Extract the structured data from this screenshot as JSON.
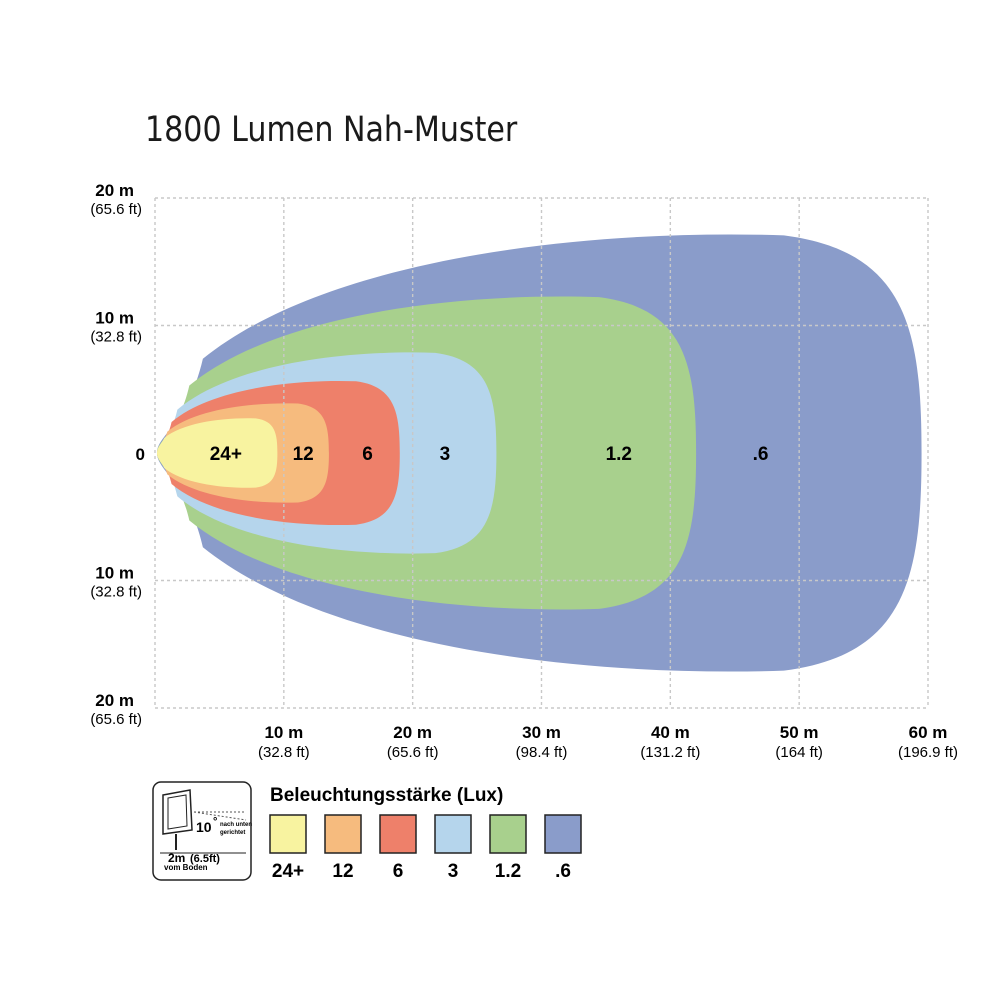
{
  "chart_data": {
    "type": "area",
    "title": "1800 Lumen Nah-Muster",
    "x_ticks": [
      {
        "m": "10 m",
        "ft": "(32.8 ft)",
        "value": 10
      },
      {
        "m": "20 m",
        "ft": "(65.6 ft)",
        "value": 20
      },
      {
        "m": "30 m",
        "ft": "(98.4 ft)",
        "value": 30
      },
      {
        "m": "40 m",
        "ft": "(131.2 ft)",
        "value": 40
      },
      {
        "m": "50 m",
        "ft": "(164 ft)",
        "value": 50
      },
      {
        "m": "60 m",
        "ft": "(196.9 ft)",
        "value": 60
      }
    ],
    "y_ticks": [
      {
        "m": "20 m",
        "ft": "(65.6 ft)",
        "value": 20
      },
      {
        "m": "10 m",
        "ft": "(32.8 ft)",
        "value": 10
      },
      {
        "m": "0",
        "ft": "",
        "value": 0
      },
      {
        "m": "10 m",
        "ft": "(32.8 ft)",
        "value": -10
      },
      {
        "m": "20 m",
        "ft": "(65.6 ft)",
        "value": -20
      }
    ],
    "xlim": [
      0,
      60
    ],
    "ylim": [
      -20,
      20
    ],
    "grid": true,
    "series": [
      {
        "name": ".6",
        "color": "#8a9cca",
        "reach_m": 59.5,
        "half_width_m": 17.6
      },
      {
        "name": "1.2",
        "color": "#a8d08d",
        "reach_m": 42,
        "half_width_m": 12.6
      },
      {
        "name": "3",
        "color": "#b5d5ec",
        "reach_m": 26.5,
        "half_width_m": 8.1
      },
      {
        "name": "6",
        "color": "#ee806a",
        "reach_m": 19,
        "half_width_m": 5.8
      },
      {
        "name": "12",
        "color": "#f6bb7e",
        "reach_m": 13.5,
        "half_width_m": 4
      },
      {
        "name": "24+",
        "color": "#f8f3a0",
        "reach_m": 9.5,
        "half_width_m": 2.8
      }
    ]
  },
  "legend": {
    "title": "Beleuchtungsstärke (Lux)",
    "items": [
      {
        "label": "24+",
        "color": "#f8f3a0"
      },
      {
        "label": "12",
        "color": "#f6bb7e"
      },
      {
        "label": "6",
        "color": "#ee806a"
      },
      {
        "label": "3",
        "color": "#b5d5ec"
      },
      {
        "label": "1.2",
        "color": "#a8d08d"
      },
      {
        "label": ".6",
        "color": "#8a9cca"
      }
    ]
  },
  "mount": {
    "angle_value": "10",
    "angle_unit": "°",
    "angle_note_1": "nach unten",
    "angle_note_2": "gerichtet",
    "height_m": "2m",
    "height_ft": "(6.5ft)",
    "height_note": "vom Boden"
  }
}
